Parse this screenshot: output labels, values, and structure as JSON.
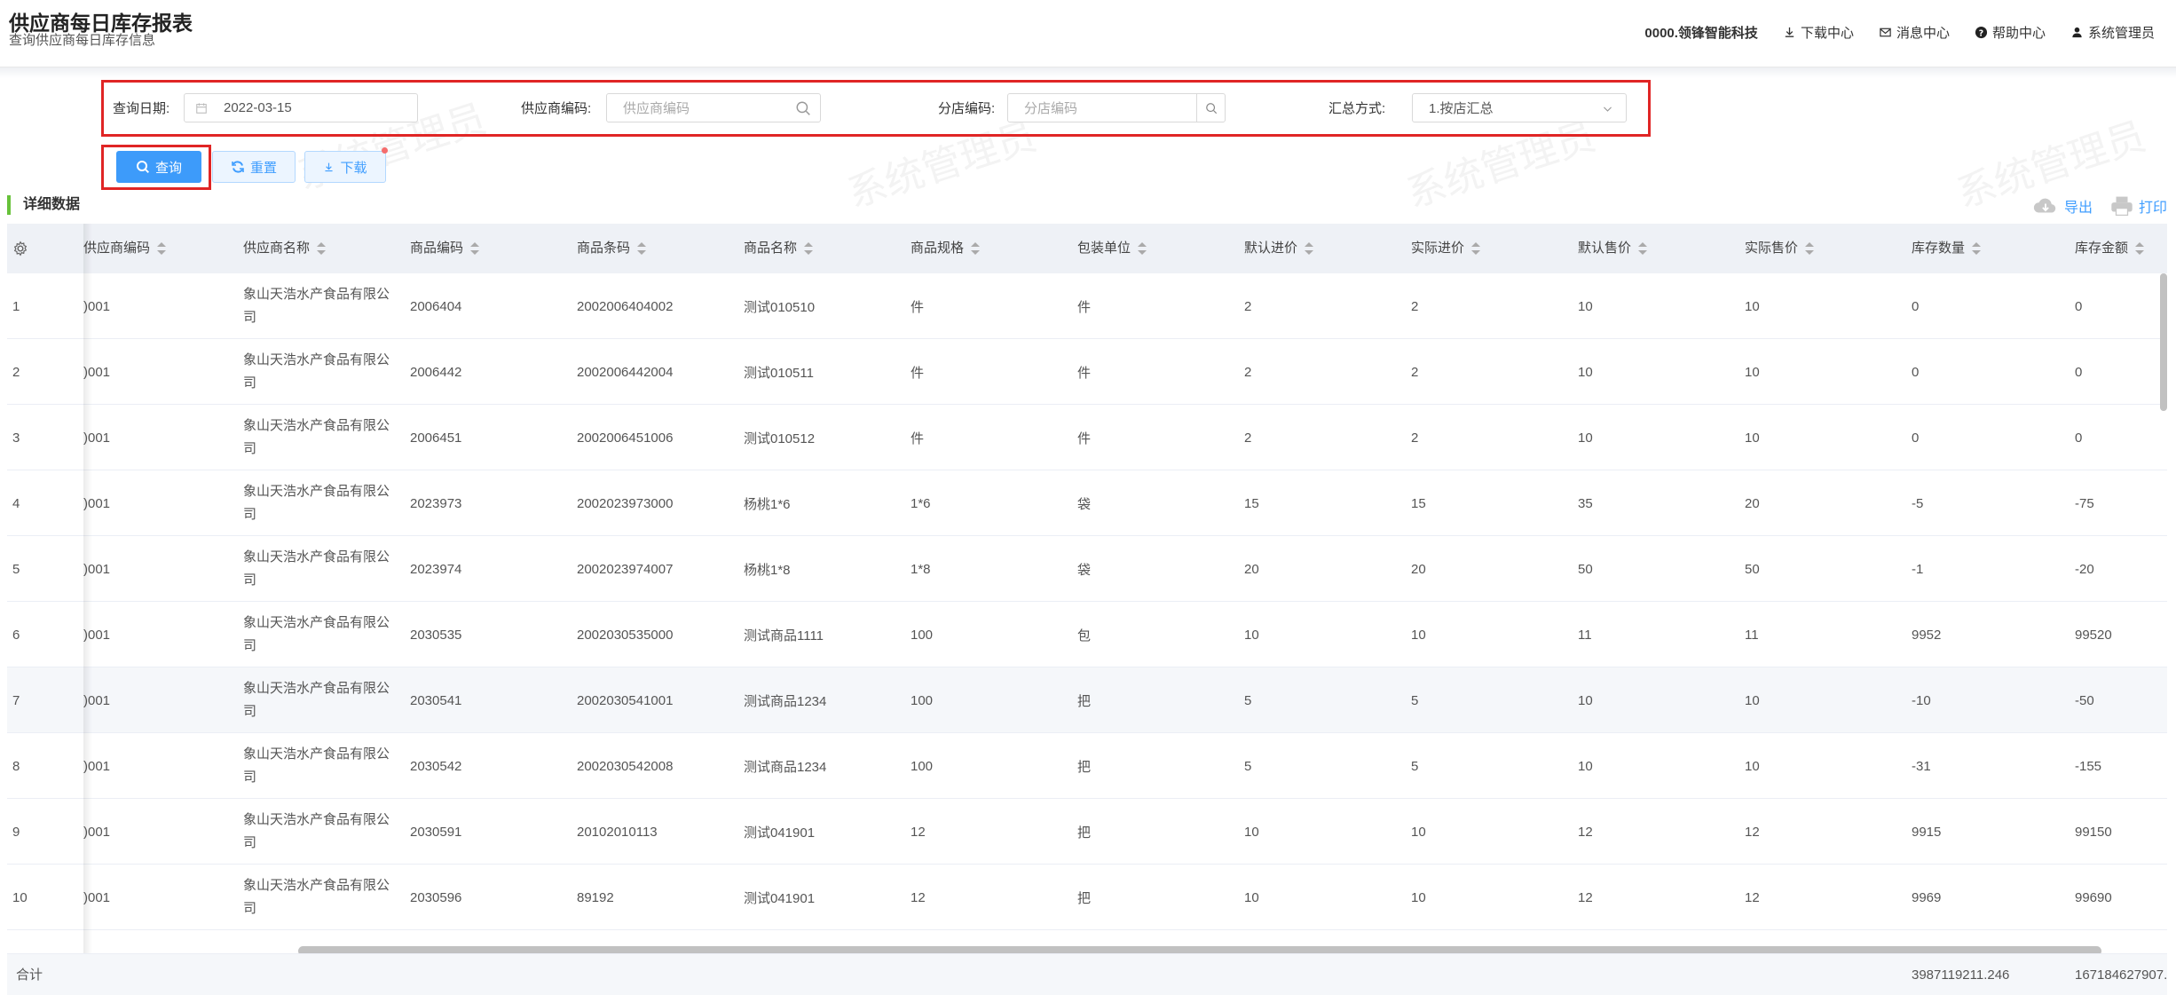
{
  "header": {
    "title": "供应商每日库存报表",
    "subtitle": "查询供应商每日库存信息",
    "company": "0000.领锋智能科技",
    "links": {
      "download_center": "下载中心",
      "message_center": "消息中心",
      "help_center": "帮助中心",
      "user": "系统管理员"
    }
  },
  "filters": {
    "date_label": "查询日期:",
    "date_value": "2022-03-15",
    "supplier_label": "供应商编码:",
    "supplier_placeholder": "供应商编码",
    "store_label": "分店编码:",
    "store_placeholder": "分店编码",
    "summary_label": "汇总方式:",
    "summary_value": "1.按店汇总"
  },
  "buttons": {
    "query": "查询",
    "reset": "重置",
    "download": "下载"
  },
  "section": {
    "title": "详细数据",
    "export": "导出",
    "print": "打印"
  },
  "watermark": "系统管理员",
  "table": {
    "columns": [
      "供应商编码",
      "供应商名称",
      "商品编码",
      "商品条码",
      "商品名称",
      "商品规格",
      "包装单位",
      "默认进价",
      "实际进价",
      "默认售价",
      "实际售价",
      "库存数量",
      "库存金额"
    ],
    "rows": [
      {
        "idx": "1",
        "supplier_code": ")001",
        "supplier_name": "象山天浩水产食品有限公司",
        "goods_code": "2006404",
        "barcode": "2002006404002",
        "goods_name": "测试010510",
        "spec": "件",
        "unit": "件",
        "default_in": "2",
        "actual_in": "2",
        "default_sale": "10",
        "actual_sale": "10",
        "qty": "0",
        "amount": "0"
      },
      {
        "idx": "2",
        "supplier_code": ")001",
        "supplier_name": "象山天浩水产食品有限公司",
        "goods_code": "2006442",
        "barcode": "2002006442004",
        "goods_name": "测试010511",
        "spec": "件",
        "unit": "件",
        "default_in": "2",
        "actual_in": "2",
        "default_sale": "10",
        "actual_sale": "10",
        "qty": "0",
        "amount": "0"
      },
      {
        "idx": "3",
        "supplier_code": ")001",
        "supplier_name": "象山天浩水产食品有限公司",
        "goods_code": "2006451",
        "barcode": "2002006451006",
        "goods_name": "测试010512",
        "spec": "件",
        "unit": "件",
        "default_in": "2",
        "actual_in": "2",
        "default_sale": "10",
        "actual_sale": "10",
        "qty": "0",
        "amount": "0"
      },
      {
        "idx": "4",
        "supplier_code": ")001",
        "supplier_name": "象山天浩水产食品有限公司",
        "goods_code": "2023973",
        "barcode": "2002023973000",
        "goods_name": "杨桃1*6",
        "spec": "1*6",
        "unit": "袋",
        "default_in": "15",
        "actual_in": "15",
        "default_sale": "35",
        "actual_sale": "20",
        "qty": "-5",
        "amount": "-75"
      },
      {
        "idx": "5",
        "supplier_code": ")001",
        "supplier_name": "象山天浩水产食品有限公司",
        "goods_code": "2023974",
        "barcode": "2002023974007",
        "goods_name": "杨桃1*8",
        "spec": "1*8",
        "unit": "袋",
        "default_in": "20",
        "actual_in": "20",
        "default_sale": "50",
        "actual_sale": "50",
        "qty": "-1",
        "amount": "-20"
      },
      {
        "idx": "6",
        "supplier_code": ")001",
        "supplier_name": "象山天浩水产食品有限公司",
        "goods_code": "2030535",
        "barcode": "2002030535000",
        "goods_name": "测试商品1111",
        "spec": "100",
        "unit": "包",
        "default_in": "10",
        "actual_in": "10",
        "default_sale": "11",
        "actual_sale": "11",
        "qty": "9952",
        "amount": "99520"
      },
      {
        "idx": "7",
        "supplier_code": ")001",
        "supplier_name": "象山天浩水产食品有限公司",
        "goods_code": "2030541",
        "barcode": "2002030541001",
        "goods_name": "测试商品1234",
        "spec": "100",
        "unit": "把",
        "default_in": "5",
        "actual_in": "5",
        "default_sale": "10",
        "actual_sale": "10",
        "qty": "-10",
        "amount": "-50"
      },
      {
        "idx": "8",
        "supplier_code": ")001",
        "supplier_name": "象山天浩水产食品有限公司",
        "goods_code": "2030542",
        "barcode": "2002030542008",
        "goods_name": "测试商品1234",
        "spec": "100",
        "unit": "把",
        "default_in": "5",
        "actual_in": "5",
        "default_sale": "10",
        "actual_sale": "10",
        "qty": "-31",
        "amount": "-155"
      },
      {
        "idx": "9",
        "supplier_code": ")001",
        "supplier_name": "象山天浩水产食品有限公司",
        "goods_code": "2030591",
        "barcode": "20102010113",
        "goods_name": "测试041901",
        "spec": "12",
        "unit": "把",
        "default_in": "10",
        "actual_in": "10",
        "default_sale": "12",
        "actual_sale": "12",
        "qty": "9915",
        "amount": "99150"
      },
      {
        "idx": "10",
        "supplier_code": ")001",
        "supplier_name": "象山天浩水产食品有限公司",
        "goods_code": "2030596",
        "barcode": "89192",
        "goods_name": "测试041901",
        "spec": "12",
        "unit": "把",
        "default_in": "10",
        "actual_in": "10",
        "default_sale": "12",
        "actual_sale": "12",
        "qty": "9969",
        "amount": "99690"
      }
    ],
    "footer": {
      "label": "合计",
      "qty_total": "3987119211.246",
      "amount_total": "167184627907."
    }
  },
  "colors": {
    "primary": "#3d9bfa",
    "highlight_border": "#e02525",
    "section_accent": "#67c23a"
  }
}
